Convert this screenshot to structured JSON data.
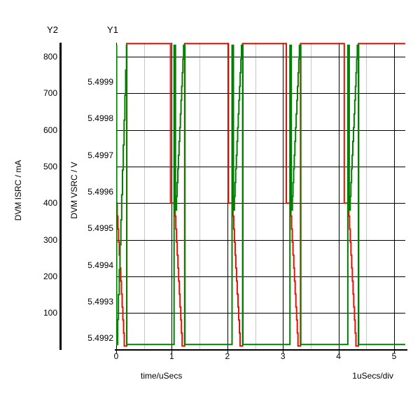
{
  "axis_headers": {
    "y2": "Y2",
    "y1": "Y1"
  },
  "chart_data": {
    "type": "line",
    "title": "",
    "background": "#ffffff",
    "x_axis": {
      "title": "time/uSecs",
      "per_div": "1uSecs/div",
      "min_us": 0,
      "max_us": 5.2,
      "ticks": [
        {
          "label": "0",
          "v": 0
        },
        {
          "label": "1",
          "v": 1
        },
        {
          "label": "2",
          "v": 2
        },
        {
          "label": "3",
          "v": 3
        },
        {
          "label": "4",
          "v": 4
        },
        {
          "label": "5",
          "v": 5
        }
      ],
      "minor_ticks": [
        0.5,
        1.5,
        2.5,
        3.5,
        4.5
      ]
    },
    "y1_axis": {
      "name": "Y1",
      "title": "DVM VSRC / V",
      "unit": "V",
      "ticks": [
        {
          "label": "5.4999",
          "v": 5.4999
        },
        {
          "label": "5.4998",
          "v": 5.4998
        },
        {
          "label": "5.4997",
          "v": 5.4997
        },
        {
          "label": "5.4996",
          "v": 5.4996
        },
        {
          "label": "5.4995",
          "v": 5.4995
        },
        {
          "label": "5.4994",
          "v": 5.4994
        },
        {
          "label": "5.4993",
          "v": 5.4993
        },
        {
          "label": "5.4992",
          "v": 5.4992
        }
      ]
    },
    "y2_axis": {
      "name": "Y2",
      "title": "DVM ISRC / mA",
      "unit": "mA",
      "ticks": [
        {
          "label": "800",
          "v": 800
        },
        {
          "label": "700",
          "v": 700
        },
        {
          "label": "600",
          "v": 600
        },
        {
          "label": "500",
          "v": 500
        },
        {
          "label": "400",
          "v": 400
        },
        {
          "label": "300",
          "v": 300
        },
        {
          "label": "200",
          "v": 200
        },
        {
          "label": "100",
          "v": 100
        }
      ]
    },
    "grid": {
      "major_color": "#000000",
      "minor_color": "#c8c8c8"
    },
    "series": [
      {
        "name": "DVM VSRC",
        "axis": "Y1",
        "unit": "V",
        "color": "#008000",
        "period_us": 1.042,
        "cycles": 5,
        "end_us": 5.2,
        "high_V": 5.5,
        "low_V": 5.499183,
        "dip_V": 5.49955,
        "first_cycle": {
          "drop_at": 0.008,
          "ramp_start": 0.012,
          "ramp_end": 0.185,
          "fall_at": 0.19
        },
        "cycle": {
          "top_until": 0.025,
          "dip_at": 0.032,
          "ramp_end": 0.17,
          "fall_at": 0.195
        },
        "ramp_steps": 12
      },
      {
        "name": "DVM ISRC",
        "axis": "Y2",
        "unit": "mA",
        "color": "#e81000",
        "period_us": 1.042,
        "cycles": 5,
        "end_us": 5.2,
        "high_mA": 836,
        "mid_mA": 400,
        "low_mA": 10,
        "cycle": {
          "drop_from_high_at": -0.065,
          "ramp_start": 0.005,
          "ramp_end": 0.145,
          "low_until": 0.19
        },
        "ramp_steps": 11
      }
    ]
  }
}
